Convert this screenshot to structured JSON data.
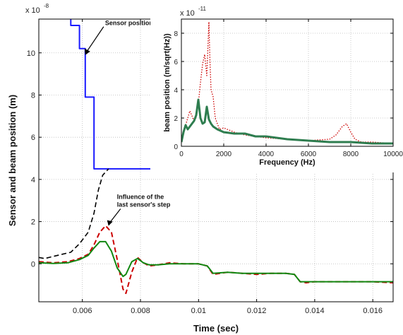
{
  "chart_data": [
    {
      "type": "line",
      "ylabel": "Sensor and beam position (m)",
      "xlabel": "Time (sec)",
      "y_scale_label": "x 10",
      "y_scale_exponent": "-8",
      "xlim": [
        0.0045,
        0.0167
      ],
      "ylim": [
        -1.8,
        11.6
      ],
      "xticks": [
        "0.006",
        "0.008",
        "0.01",
        "0.012",
        "0.014",
        "0.016"
      ],
      "xtick_values": [
        0.006,
        0.008,
        0.01,
        0.012,
        0.014,
        0.016
      ],
      "yticks": [
        "0",
        "2",
        "4",
        "6",
        "8",
        "10"
      ],
      "ytick_values": [
        0,
        2,
        4,
        6,
        8,
        10
      ],
      "grid": true,
      "annotations": [
        {
          "text": "Sensor position",
          "at": [
            0.0061,
            9.9
          ]
        },
        {
          "text": "Influence of the",
          "at": [
            0.0069,
            1.8
          ]
        },
        {
          "text": "last sensor's step",
          "at": [
            0.0069,
            1.8
          ]
        }
      ],
      "series": [
        {
          "color": "#1a1aff",
          "style": "solid",
          "x": [
            0.0056,
            0.0056,
            0.0059,
            0.0059,
            0.0061,
            0.0061,
            0.0064,
            0.0064,
            0.0167
          ],
          "y": [
            11.6,
            11.3,
            11.3,
            10.2,
            10.2,
            7.9,
            7.9,
            4.5,
            4.5
          ]
        },
        {
          "color": "#000000",
          "style": "dashed",
          "x": [
            0.0045,
            0.0047,
            0.005,
            0.0053,
            0.0056,
            0.0059,
            0.0062,
            0.0064,
            0.00655,
            0.0067,
            0.0069
          ],
          "y": [
            0.3,
            0.25,
            0.35,
            0.45,
            0.55,
            0.95,
            1.5,
            2.4,
            3.5,
            4.2,
            4.5
          ]
        },
        {
          "color": "#cc0000",
          "style": "dashed",
          "x": [
            0.0045,
            0.005,
            0.0055,
            0.0059,
            0.0062,
            0.0064,
            0.0066,
            0.0068,
            0.007,
            0.0072,
            0.0074,
            0.0075,
            0.0077,
            0.0079,
            0.0081,
            0.0083,
            0.0086,
            0.009,
            0.0095,
            0.01,
            0.0103,
            0.0105,
            0.011,
            0.0115,
            0.012,
            0.0125,
            0.013,
            0.0133,
            0.0135,
            0.0137,
            0.014,
            0.015,
            0.016,
            0.0167
          ],
          "y": [
            0.1,
            0.05,
            0.1,
            0.25,
            0.45,
            0.9,
            1.5,
            1.8,
            1.5,
            0.2,
            -1.2,
            -1.4,
            -0.4,
            0.3,
            0.05,
            -0.1,
            -0.05,
            0.05,
            0.0,
            0.0,
            -0.1,
            -0.5,
            -0.4,
            -0.45,
            -0.5,
            -0.45,
            -0.45,
            -0.5,
            -0.85,
            -0.9,
            -0.85,
            -0.85,
            -0.85,
            -0.9
          ]
        },
        {
          "color": "#118811",
          "style": "solid",
          "x": [
            0.0045,
            0.005,
            0.0055,
            0.0059,
            0.0062,
            0.0064,
            0.0066,
            0.0068,
            0.007,
            0.0072,
            0.0074,
            0.0075,
            0.0077,
            0.0079,
            0.0081,
            0.0083,
            0.0086,
            0.009,
            0.0095,
            0.01,
            0.0103,
            0.0105,
            0.011,
            0.0115,
            0.012,
            0.0125,
            0.013,
            0.0133,
            0.0135,
            0.0137,
            0.014,
            0.015,
            0.016,
            0.0167
          ],
          "y": [
            0.05,
            0.02,
            0.05,
            0.2,
            0.4,
            0.75,
            1.05,
            1.05,
            0.6,
            -0.2,
            -0.6,
            -0.5,
            0.1,
            0.25,
            0.05,
            -0.05,
            -0.05,
            0.0,
            0.0,
            0.0,
            -0.1,
            -0.45,
            -0.4,
            -0.45,
            -0.45,
            -0.45,
            -0.45,
            -0.5,
            -0.85,
            -0.85,
            -0.85,
            -0.85,
            -0.85,
            -0.85
          ]
        }
      ]
    },
    {
      "type": "line",
      "ylabel": "beam position (m/sqrt(Hz))",
      "xlabel": "Frequency (Hz)",
      "y_scale_label": "x 10",
      "y_scale_exponent": "-11",
      "xlim": [
        0,
        10000
      ],
      "ylim": [
        0,
        9
      ],
      "xticks": [
        "0",
        "2000",
        "4000",
        "6000",
        "8000",
        "10000"
      ],
      "xtick_values": [
        0,
        2000,
        4000,
        6000,
        8000,
        10000
      ],
      "yticks": [
        "0",
        "2",
        "4",
        "6",
        "8"
      ],
      "ytick_values": [
        0,
        2,
        4,
        6,
        8
      ],
      "grid": true,
      "series": [
        {
          "color": "#cc0000",
          "style": "dotted",
          "x": [
            0,
            200,
            400,
            600,
            800,
            900,
            1000,
            1100,
            1200,
            1300,
            1350,
            1400,
            1500,
            1600,
            1800,
            2000,
            2500,
            3000,
            4000,
            5000,
            6000,
            7000,
            7300,
            7600,
            7800,
            8000,
            8200,
            8500,
            9000,
            10000
          ],
          "y": [
            0.5,
            1.5,
            2.5,
            1.8,
            3.0,
            4.5,
            5.8,
            6.5,
            5.0,
            8.8,
            6.0,
            4.0,
            3.5,
            2.0,
            1.2,
            1.3,
            1.0,
            0.8,
            0.6,
            0.5,
            0.4,
            0.5,
            0.8,
            1.4,
            1.6,
            1.0,
            0.5,
            0.3,
            0.3,
            0.2
          ]
        },
        {
          "color": "#2e7d4f",
          "style": "solid",
          "x": [
            0,
            100,
            200,
            300,
            400,
            500,
            600,
            700,
            800,
            900,
            1000,
            1100,
            1200,
            1300,
            1400,
            1500,
            1700,
            2000,
            2500,
            3000,
            3500,
            4000,
            5000,
            6000,
            7000,
            8000,
            9000,
            10000
          ],
          "y": [
            0.3,
            1.0,
            1.5,
            1.2,
            1.4,
            1.6,
            1.8,
            2.2,
            3.3,
            2.0,
            1.6,
            1.7,
            2.8,
            1.9,
            1.6,
            1.4,
            1.2,
            1.0,
            0.9,
            0.9,
            0.7,
            0.7,
            0.5,
            0.4,
            0.3,
            0.3,
            0.2,
            0.2
          ]
        }
      ]
    }
  ]
}
